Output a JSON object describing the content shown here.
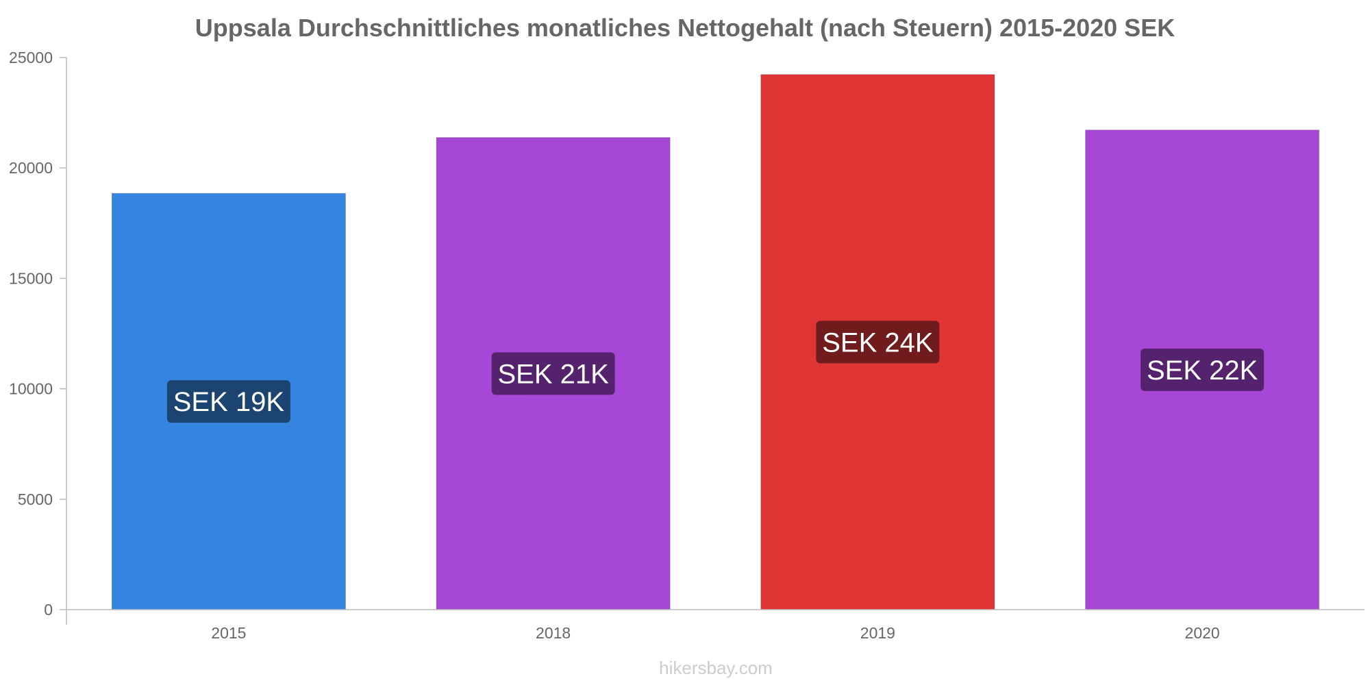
{
  "chart_data": {
    "type": "bar",
    "title": "Uppsala Durchschnittliches monatliches Nettogehalt (nach Steuern) 2015-2020 SEK",
    "xlabel": "",
    "ylabel": "",
    "categories": [
      "2015",
      "2018",
      "2019",
      "2020"
    ],
    "values": [
      18850,
      21380,
      24230,
      21720
    ],
    "data_labels": [
      "SEK 19K",
      "SEK 21K",
      "SEK 24K",
      "SEK 22K"
    ],
    "bar_colors": [
      "#3584e0",
      "#a747d8",
      "#e03535",
      "#a747d8"
    ],
    "label_box_colors": [
      "#1c4470",
      "#55236e",
      "#701c1c",
      "#55236e"
    ],
    "ylim": [
      0,
      25000
    ],
    "yticks": [
      0,
      5000,
      10000,
      15000,
      20000,
      25000
    ],
    "grid": false,
    "legend": "none"
  },
  "watermark": "hikersbay.com"
}
